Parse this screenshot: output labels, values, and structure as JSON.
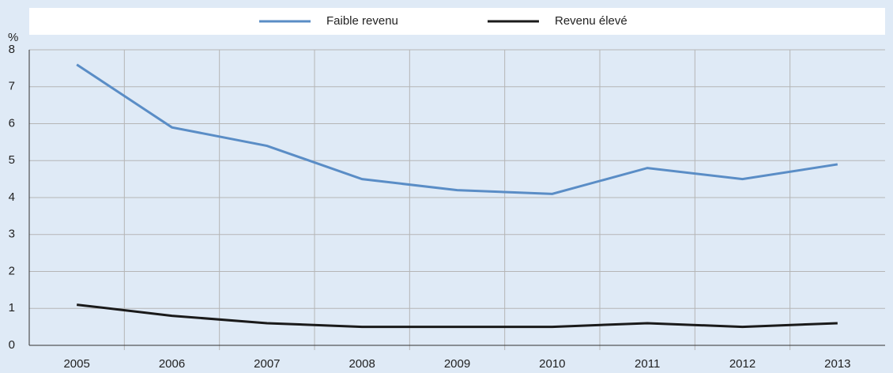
{
  "chart_data": {
    "type": "line",
    "y_unit": "%",
    "categories": [
      "2005",
      "2006",
      "2007",
      "2008",
      "2009",
      "2010",
      "2011",
      "2012",
      "2013"
    ],
    "series": [
      {
        "name": "Faible revenu",
        "color": "#5a8dc6",
        "values": [
          7.6,
          5.9,
          5.4,
          4.5,
          4.2,
          4.1,
          4.8,
          4.5,
          4.9
        ]
      },
      {
        "name": "Revenu élevé",
        "color": "#1a1a1a",
        "values": [
          1.1,
          0.8,
          0.6,
          0.5,
          0.5,
          0.5,
          0.6,
          0.5,
          0.6
        ]
      }
    ],
    "ylim": [
      0,
      8
    ],
    "yticks": [
      0,
      1,
      2,
      3,
      4,
      5,
      6,
      7,
      8
    ],
    "grid": true,
    "legend": "top"
  }
}
